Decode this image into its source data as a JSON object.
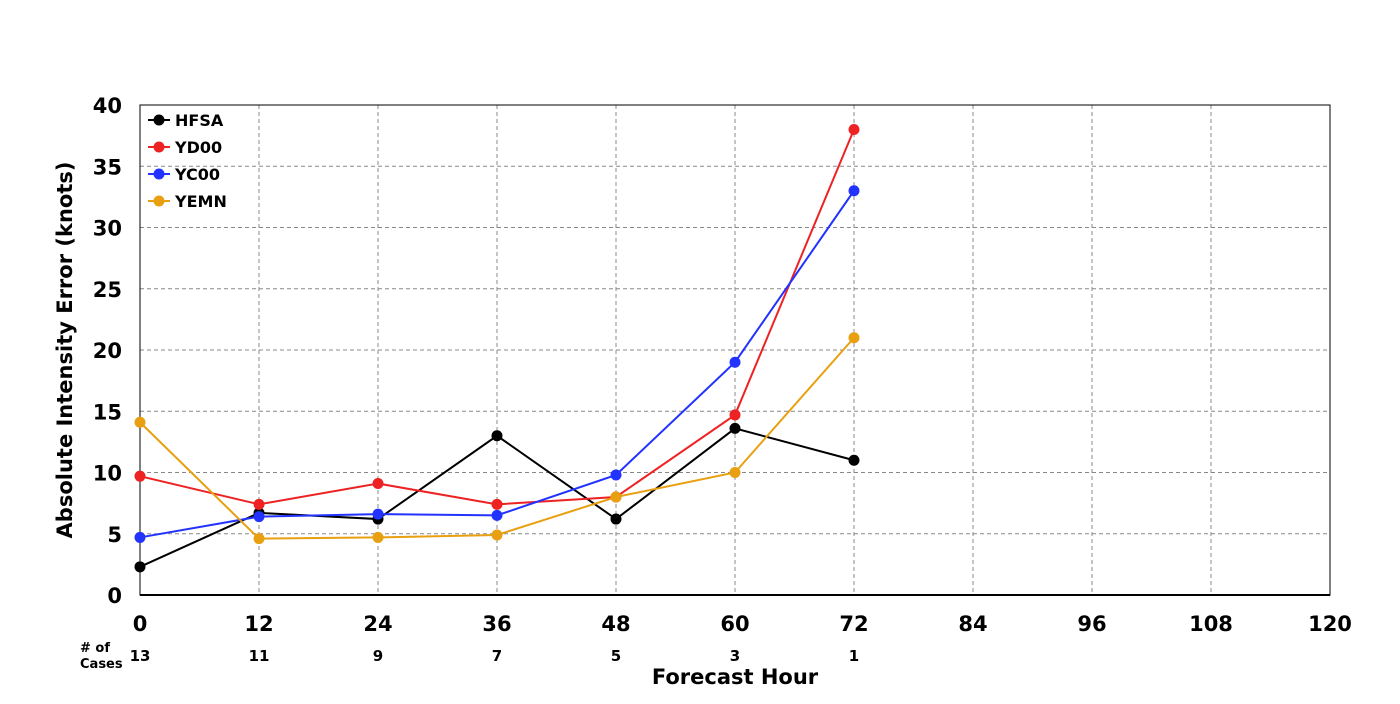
{
  "chart_data": {
    "type": "line",
    "xlabel": "Forecast Hour",
    "ylabel": "Absolute Intensity Error (knots)",
    "xlim": [
      0,
      120
    ],
    "ylim": [
      0,
      40
    ],
    "xticks": [
      0,
      12,
      24,
      36,
      48,
      60,
      72,
      84,
      96,
      108,
      120
    ],
    "yticks": [
      0,
      5,
      10,
      15,
      20,
      25,
      30,
      35,
      40
    ],
    "grid": true,
    "grid_style": "dashed",
    "legend_position": "top-left",
    "cases_label": "# of\nCases",
    "cases": [
      {
        "x": 0,
        "n": 13
      },
      {
        "x": 12,
        "n": 11
      },
      {
        "x": 24,
        "n": 9
      },
      {
        "x": 36,
        "n": 7
      },
      {
        "x": 48,
        "n": 5
      },
      {
        "x": 60,
        "n": 3
      },
      {
        "x": 72,
        "n": 1
      }
    ],
    "x": [
      0,
      12,
      24,
      36,
      48,
      60,
      72
    ],
    "series": [
      {
        "name": "HFSA",
        "color": "#000000",
        "values": [
          2.3,
          6.7,
          6.2,
          13.0,
          6.2,
          13.6,
          11.0
        ]
      },
      {
        "name": "YD00",
        "color": "#ee2222",
        "values": [
          9.7,
          7.4,
          9.1,
          7.4,
          8.0,
          14.7,
          38.0
        ]
      },
      {
        "name": "YC00",
        "color": "#2233ff",
        "values": [
          4.7,
          6.4,
          6.6,
          6.5,
          9.8,
          19.0,
          33.0
        ]
      },
      {
        "name": "YEMN",
        "color": "#e8a010",
        "values": [
          14.1,
          4.6,
          4.7,
          4.9,
          8.0,
          10.0,
          21.0
        ]
      }
    ]
  }
}
